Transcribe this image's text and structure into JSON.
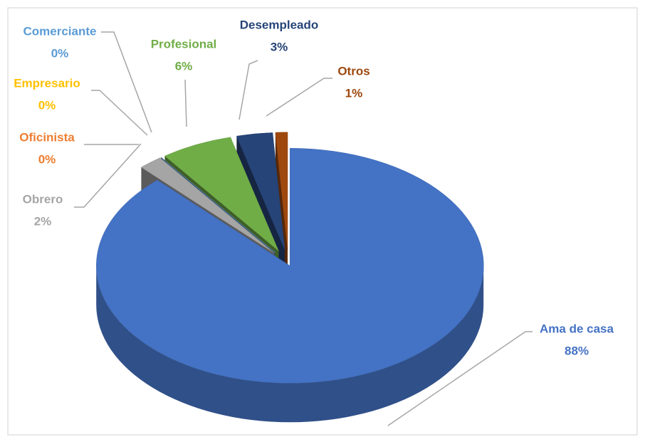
{
  "chart_data": {
    "type": "pie3d",
    "categories": [
      "Ama de casa",
      "Obrero",
      "Oficinista",
      "Empresario",
      "Comerciante",
      "Profesional",
      "Desempleado",
      "Otros"
    ],
    "values": [
      88,
      2,
      0,
      0,
      0,
      6,
      3,
      1
    ],
    "value_labels": [
      "88%",
      "2%",
      "0%",
      "0%",
      "0%",
      "6%",
      "3%",
      "1%"
    ],
    "colors": [
      "#4472c4",
      "#a5a5a5",
      "#ed7d31",
      "#ffc000",
      "#5b9bd5",
      "#70ad47",
      "#264478",
      "#9e480e"
    ]
  }
}
